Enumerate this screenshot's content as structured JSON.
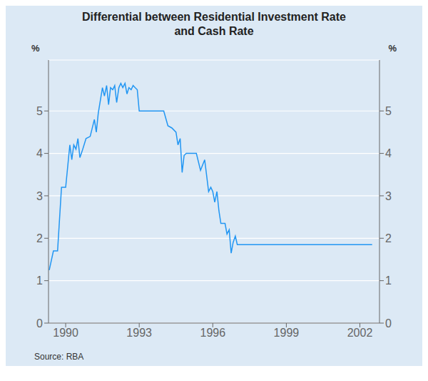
{
  "chart_data": {
    "type": "line",
    "title": "Differential between Residential Investment Rate\nand Cash Rate",
    "ylabel": "%",
    "y2label": "%",
    "source": "Source: RBA",
    "color": "#2196F3",
    "grid": "y",
    "xlim": [
      1989.3,
      2002.8
    ],
    "xticks": [
      1990,
      1993,
      1996,
      1999,
      2002
    ],
    "ylim": [
      0,
      6.2
    ],
    "yticks": [
      0,
      1,
      2,
      3,
      4,
      5
    ],
    "y2lim": [
      0,
      6.2
    ],
    "y2ticks": [
      0,
      1,
      2,
      3,
      4,
      5
    ],
    "x": [
      1989.33,
      1989.5,
      1989.67,
      1989.83,
      1990.0,
      1990.17,
      1990.25,
      1990.33,
      1990.42,
      1990.5,
      1990.58,
      1990.67,
      1990.75,
      1990.83,
      1991.0,
      1991.17,
      1991.25,
      1991.33,
      1991.5,
      1991.58,
      1991.67,
      1991.75,
      1991.83,
      1991.92,
      1992.0,
      1992.08,
      1992.17,
      1992.25,
      1992.33,
      1992.42,
      1992.5,
      1992.58,
      1992.67,
      1992.75,
      1992.83,
      1992.92,
      1993.0,
      1993.08,
      1993.17,
      1993.25,
      1993.33,
      1993.42,
      1993.5,
      1994.0,
      1994.17,
      1994.33,
      1994.5,
      1994.58,
      1994.67,
      1994.75,
      1994.83,
      1994.92,
      1995.0,
      1995.17,
      1995.33,
      1995.5,
      1995.67,
      1995.83,
      1995.92,
      1996.0,
      1996.08,
      1996.17,
      1996.25,
      1996.33,
      1996.42,
      1996.5,
      1996.58,
      1996.67,
      1996.75,
      1996.83,
      1996.92,
      1997.0,
      1997.25,
      1997.5,
      1998.0,
      1998.5,
      1999.0,
      1999.5,
      2000.0,
      2000.5,
      2001.0,
      2001.5,
      2002.0,
      2002.5
    ],
    "values": [
      1.25,
      1.7,
      1.7,
      3.2,
      3.2,
      4.2,
      3.85,
      4.2,
      4.1,
      4.35,
      3.9,
      4.05,
      4.2,
      4.35,
      4.4,
      4.8,
      4.5,
      4.95,
      5.55,
      5.35,
      5.6,
      5.15,
      5.55,
      5.5,
      5.6,
      5.2,
      5.55,
      5.65,
      5.55,
      5.65,
      5.4,
      5.55,
      5.5,
      5.6,
      5.55,
      5.5,
      5.0,
      5.0,
      5.0,
      5.0,
      5.0,
      5.0,
      5.0,
      5.0,
      4.65,
      4.6,
      4.5,
      4.2,
      4.35,
      3.55,
      3.95,
      4.0,
      4.0,
      4.0,
      4.0,
      3.6,
      3.85,
      3.1,
      3.2,
      3.1,
      2.85,
      3.1,
      2.65,
      2.35,
      2.35,
      2.35,
      2.1,
      2.2,
      1.65,
      1.9,
      2.05,
      1.85,
      1.85,
      1.85,
      1.85,
      1.85,
      1.85,
      1.85,
      1.85,
      1.85,
      1.85,
      1.85,
      1.85,
      1.85
    ]
  }
}
